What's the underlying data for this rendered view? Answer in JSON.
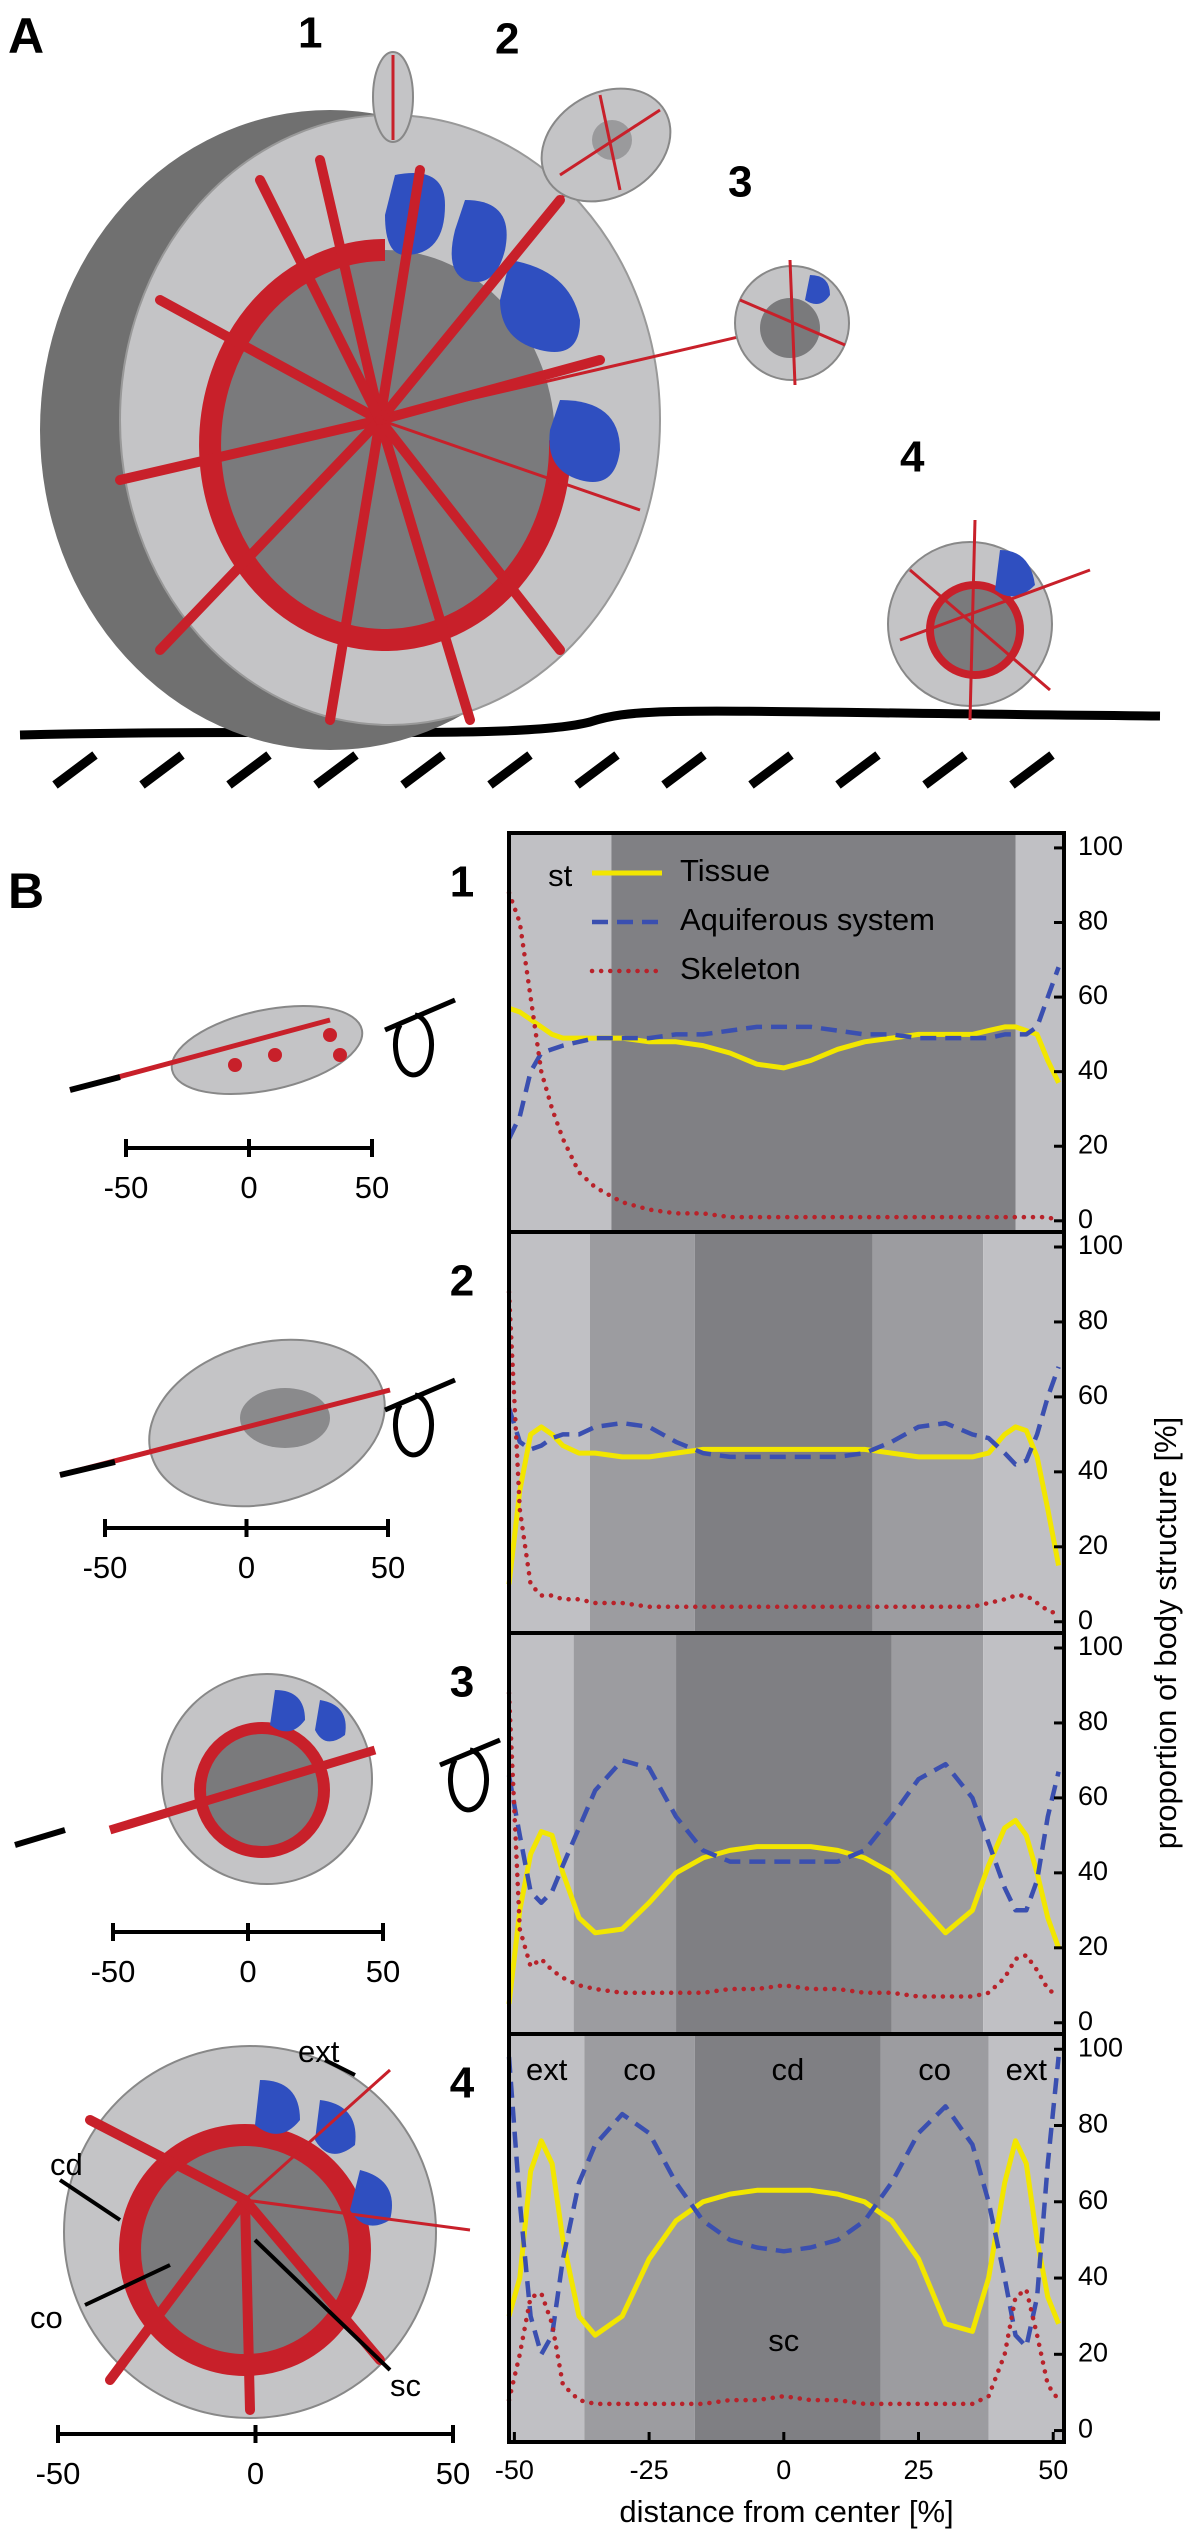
{
  "figure_labels": [
    "A",
    "B"
  ],
  "scale_bar_ticks": [
    "-50",
    "0",
    "50"
  ],
  "drawing_labels": [
    "ext",
    "cd",
    "co",
    "sc"
  ],
  "chart_data": [
    {
      "type": "line",
      "label": "1",
      "x": [
        -51,
        -49,
        -47,
        -45,
        -43,
        -41,
        -38,
        -35,
        -30,
        -25,
        -20,
        -15,
        -10,
        -5,
        0,
        5,
        10,
        15,
        20,
        25,
        30,
        35,
        38,
        41,
        43,
        45,
        47,
        49,
        51
      ],
      "xlim": [
        -51,
        52
      ],
      "ylim": [
        -3,
        104
      ],
      "yticks": [
        0,
        20,
        40,
        60,
        80,
        100
      ],
      "legend": "upper left",
      "regions": [
        {
          "from": -51,
          "to": -32,
          "color": "#c0c0c4",
          "label": "st"
        },
        {
          "from": -32,
          "to": 43,
          "color": "#808084"
        },
        {
          "from": 43,
          "to": 52,
          "color": "#c0c0c4"
        }
      ],
      "series": [
        {
          "name": "Tissue",
          "color": "#f2e600",
          "style": "solid",
          "values": [
            57,
            56,
            54,
            52,
            50,
            49,
            49,
            49,
            49,
            48,
            48,
            47,
            45,
            42,
            41,
            43,
            46,
            48,
            49,
            50,
            50,
            50,
            51,
            52,
            52,
            51,
            50,
            43,
            37
          ]
        },
        {
          "name": "Aquiferous system",
          "color": "#3a4fb0",
          "style": "dashed",
          "values": [
            22,
            28,
            40,
            45,
            46,
            47,
            48,
            49,
            49,
            49,
            50,
            50,
            51,
            52,
            52,
            52,
            51,
            50,
            50,
            49,
            49,
            49,
            49,
            50,
            50,
            50,
            52,
            60,
            68
          ]
        },
        {
          "name": "Skeleton",
          "color": "#b8222a",
          "style": "dotted",
          "values": [
            88,
            80,
            60,
            40,
            30,
            22,
            13,
            9,
            5,
            3,
            2,
            2,
            1,
            1,
            1,
            1,
            1,
            1,
            1,
            1,
            1,
            1,
            1,
            1,
            1,
            1,
            1,
            1,
            0
          ]
        }
      ]
    },
    {
      "type": "line",
      "label": "2",
      "ylabel": "proportion of body structure [%]",
      "x": [
        -51,
        -49,
        -47,
        -45,
        -43,
        -41,
        -38,
        -35,
        -30,
        -25,
        -20,
        -15,
        -10,
        -5,
        0,
        5,
        10,
        15,
        20,
        25,
        30,
        35,
        38,
        41,
        43,
        45,
        47,
        49,
        51
      ],
      "xlim": [
        -51,
        52
      ],
      "ylim": [
        -3,
        104
      ],
      "yticks": [
        0,
        20,
        40,
        60,
        80,
        100
      ],
      "regions": [
        {
          "from": -51,
          "to": -36,
          "color": "#c0c0c4"
        },
        {
          "from": -36,
          "to": -16.5,
          "color": "#9c9ca0"
        },
        {
          "from": -16.5,
          "to": 16.5,
          "color": "#7f7f83"
        },
        {
          "from": 16.5,
          "to": 37,
          "color": "#9c9ca0"
        },
        {
          "from": 37,
          "to": 52,
          "color": "#c0c0c4"
        }
      ],
      "series": [
        {
          "color": "#f2e600",
          "style": "solid",
          "values": [
            10,
            35,
            50,
            52,
            50,
            47,
            45,
            45,
            44,
            44,
            45,
            46,
            46,
            46,
            46,
            46,
            46,
            46,
            45,
            44,
            44,
            44,
            45,
            50,
            52,
            51,
            44,
            30,
            15
          ]
        },
        {
          "color": "#3a4fb0",
          "style": "dashed",
          "values": [
            57,
            48,
            46,
            47,
            49,
            50,
            50,
            52,
            53,
            52,
            48,
            45,
            44,
            44,
            44,
            44,
            44,
            45,
            48,
            52,
            53,
            50,
            49,
            45,
            42,
            43,
            50,
            60,
            68
          ]
        },
        {
          "color": "#b8222a",
          "style": "dotted",
          "values": [
            88,
            30,
            10,
            7,
            7,
            6,
            6,
            5,
            5,
            4,
            4,
            4,
            4,
            4,
            4,
            4,
            4,
            4,
            4,
            4,
            4,
            4,
            5,
            6,
            7,
            7,
            5,
            3,
            2
          ]
        }
      ]
    },
    {
      "type": "line",
      "label": "3",
      "x": [
        -51,
        -49,
        -47,
        -45,
        -43,
        -41,
        -38,
        -35,
        -30,
        -25,
        -20,
        -15,
        -10,
        -5,
        0,
        5,
        10,
        15,
        20,
        25,
        30,
        35,
        38,
        41,
        43,
        45,
        47,
        49,
        51
      ],
      "xlim": [
        -51,
        52
      ],
      "ylim": [
        -3,
        104
      ],
      "yticks": [
        0,
        20,
        40,
        60,
        80,
        100
      ],
      "regions": [
        {
          "from": -51,
          "to": -39,
          "color": "#c0c0c4"
        },
        {
          "from": -39,
          "to": -20,
          "color": "#9c9ca0"
        },
        {
          "from": -20,
          "to": 20,
          "color": "#7f7f83"
        },
        {
          "from": 20,
          "to": 37,
          "color": "#9c9ca0"
        },
        {
          "from": 37,
          "to": 52,
          "color": "#c0c0c4"
        }
      ],
      "series": [
        {
          "color": "#f2e600",
          "style": "solid",
          "values": [
            5,
            30,
            45,
            51,
            50,
            40,
            28,
            24,
            25,
            32,
            40,
            44,
            46,
            47,
            47,
            47,
            46,
            44,
            40,
            32,
            24,
            30,
            42,
            52,
            54,
            50,
            40,
            28,
            20
          ]
        },
        {
          "color": "#3a4fb0",
          "style": "dashed",
          "values": [
            66,
            50,
            35,
            32,
            35,
            42,
            52,
            62,
            70,
            68,
            55,
            46,
            43,
            43,
            43,
            43,
            43,
            46,
            55,
            65,
            69,
            60,
            48,
            36,
            30,
            30,
            38,
            55,
            67
          ]
        },
        {
          "color": "#b8222a",
          "style": "dotted",
          "values": [
            88,
            25,
            15,
            17,
            14,
            12,
            10,
            9,
            8,
            8,
            8,
            8,
            9,
            9,
            10,
            9,
            9,
            8,
            8,
            7,
            7,
            7,
            8,
            12,
            17,
            18,
            14,
            9,
            7
          ]
        }
      ]
    },
    {
      "type": "line",
      "label": "4",
      "xlabel": "distance from center [%]",
      "x": [
        -51,
        -49,
        -47,
        -45,
        -43,
        -41,
        -38,
        -35,
        -30,
        -25,
        -20,
        -15,
        -10,
        -5,
        0,
        5,
        10,
        15,
        20,
        25,
        30,
        35,
        38,
        41,
        43,
        45,
        47,
        49,
        51
      ],
      "xlim": [
        -51,
        52
      ],
      "ylim": [
        -3,
        104
      ],
      "yticks": [
        0,
        20,
        40,
        60,
        80,
        100
      ],
      "xticks": [
        -50,
        -25,
        0,
        25,
        50
      ],
      "regions": [
        {
          "from": -51,
          "to": -37,
          "color": "#c0c0c4",
          "label": "ext"
        },
        {
          "from": -37,
          "to": -16.5,
          "color": "#9c9ca0",
          "label": "co"
        },
        {
          "from": -16.5,
          "to": 18,
          "color": "#7f7f83",
          "label": "cd"
        },
        {
          "from": 18,
          "to": 38,
          "color": "#9c9ca0",
          "label": "co"
        },
        {
          "from": 38,
          "to": 52,
          "color": "#c0c0c4",
          "label": "ext"
        }
      ],
      "annotations": [
        {
          "text": "sc",
          "x": 0,
          "y": 23
        }
      ],
      "series": [
        {
          "color": "#f2e600",
          "style": "solid",
          "values": [
            30,
            40,
            68,
            76,
            70,
            50,
            30,
            25,
            30,
            45,
            55,
            60,
            62,
            63,
            63,
            63,
            62,
            60,
            55,
            45,
            28,
            26,
            40,
            65,
            76,
            70,
            50,
            35,
            28
          ]
        },
        {
          "color": "#3a4fb0",
          "style": "dashed",
          "values": [
            98,
            60,
            30,
            20,
            25,
            45,
            65,
            75,
            83,
            78,
            65,
            55,
            50,
            48,
            47,
            48,
            50,
            55,
            65,
            78,
            85,
            75,
            60,
            40,
            25,
            22,
            35,
            70,
            98
          ]
        },
        {
          "color": "#b8222a",
          "style": "dotted",
          "values": [
            8,
            20,
            35,
            36,
            28,
            12,
            8,
            7,
            7,
            7,
            7,
            7,
            8,
            8,
            9,
            8,
            8,
            7,
            7,
            7,
            7,
            7,
            9,
            20,
            35,
            37,
            25,
            12,
            8
          ]
        }
      ]
    }
  ]
}
